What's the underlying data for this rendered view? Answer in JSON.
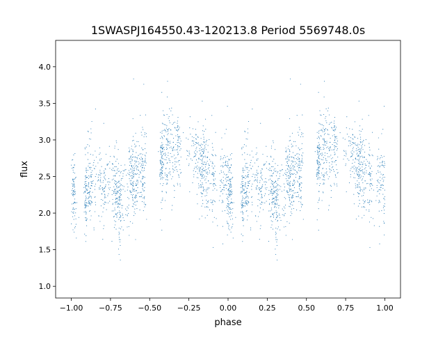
{
  "chart_data": {
    "type": "scatter",
    "title": "1SWASPJ164550.43-120213.8 Period 5569748.0s",
    "xlabel": "phase",
    "ylabel": "flux",
    "xlim": [
      -1.1,
      1.1
    ],
    "ylim": [
      0.84,
      4.36
    ],
    "xticks": [
      -1.0,
      -0.75,
      -0.5,
      -0.25,
      0.0,
      0.25,
      0.5,
      0.75,
      1.0
    ],
    "xtick_labels": [
      "−1.00",
      "−0.75",
      "−0.50",
      "−0.25",
      "0.00",
      "0.25",
      "0.50",
      "0.75",
      "1.00"
    ],
    "yticks": [
      1.0,
      1.5,
      2.0,
      2.5,
      3.0,
      3.5,
      4.0
    ],
    "ytick_labels": [
      "1.0",
      "1.5",
      "2.0",
      "2.5",
      "3.0",
      "3.5",
      "4.0"
    ],
    "grid": false,
    "color": "#1f77b4",
    "note_series": "phase-folded light curve, repeated over phase -1..1; median flux profile per 0.1 phase",
    "profile_phase": [
      0.0,
      0.1,
      0.2,
      0.3,
      0.4,
      0.5,
      0.6,
      0.7,
      0.8,
      0.9,
      1.0
    ],
    "profile_flux": [
      2.5,
      2.3,
      2.3,
      2.3,
      2.5,
      2.8,
      2.85,
      2.9,
      2.7,
      2.6,
      2.5
    ],
    "flux_scatter": 0.25,
    "points_per_unit_phase": 1600
  }
}
